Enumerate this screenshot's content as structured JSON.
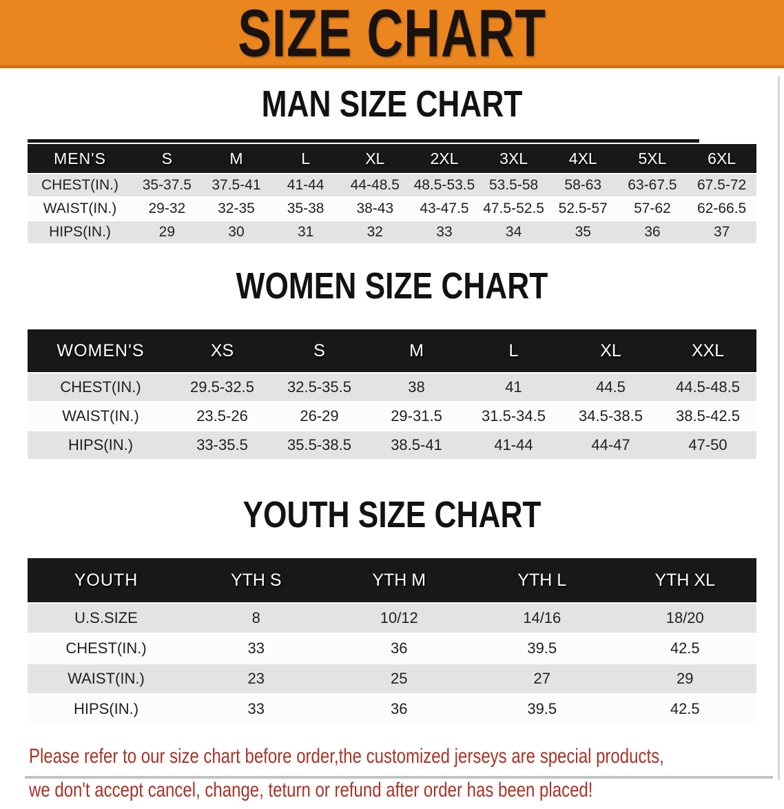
{
  "banner": {
    "title": "SIZE CHART"
  },
  "colors": {
    "banner_bg": "#EB851E",
    "banner_edge": "#C96F10",
    "band_bg": "#181818",
    "shade_row": "#E3E3E4",
    "note_red": "#A93226"
  },
  "sections": [
    {
      "title": "MAN SIZE CHART",
      "corner_label": "MEN'S",
      "columns": [
        "S",
        "M",
        "L",
        "XL",
        "2XL",
        "3XL",
        "4XL",
        "5XL",
        "6XL"
      ],
      "rows": [
        {
          "label": "CHEST(IN.)",
          "values": [
            "35-37.5",
            "37.5-41",
            "41-44",
            "44-48.5",
            "48.5-53.5",
            "53.5-58",
            "58-63",
            "63-67.5",
            "67.5-72"
          ]
        },
        {
          "label": "WAIST(IN.)",
          "values": [
            "29-32",
            "32-35",
            "35-38",
            "38-43",
            "43-47.5",
            "47.5-52.5",
            "52.5-57",
            "57-62",
            "62-66.5"
          ]
        },
        {
          "label": "HIPS(IN.)",
          "values": [
            "29",
            "30",
            "31",
            "32",
            "33",
            "34",
            "35",
            "36",
            "37"
          ]
        }
      ]
    },
    {
      "title": "WOMEN SIZE CHART",
      "corner_label": "WOMEN'S",
      "columns": [
        "XS",
        "S",
        "M",
        "L",
        "XL",
        "XXL"
      ],
      "rows": [
        {
          "label": "CHEST(IN.)",
          "values": [
            "29.5-32.5",
            "32.5-35.5",
            "38",
            "41",
            "44.5",
            "44.5-48.5"
          ]
        },
        {
          "label": "WAIST(IN.)",
          "values": [
            "23.5-26",
            "26-29",
            "29-31.5",
            "31.5-34.5",
            "34.5-38.5",
            "38.5-42.5"
          ]
        },
        {
          "label": "HIPS(IN.)",
          "values": [
            "33-35.5",
            "35.5-38.5",
            "38.5-41",
            "41-44",
            "44-47",
            "47-50"
          ]
        }
      ]
    },
    {
      "title": "YOUTH SIZE CHART",
      "corner_label": "YOUTH",
      "columns": [
        "YTH S",
        "YTH M",
        "YTH L",
        "YTH XL"
      ],
      "rows": [
        {
          "label": "U.S.SIZE",
          "values": [
            "8",
            "10/12",
            "14/16",
            "18/20"
          ]
        },
        {
          "label": "CHEST(IN.)",
          "values": [
            "33",
            "36",
            "39.5",
            "42.5"
          ]
        },
        {
          "label": "WAIST(IN.)",
          "values": [
            "23",
            "25",
            "27",
            "29"
          ]
        },
        {
          "label": "HIPS(IN.)",
          "values": [
            "33",
            "36",
            "39.5",
            "42.5"
          ]
        }
      ]
    }
  ],
  "footer": {
    "line1": "Please refer to our size chart before order,the customized jerseys are special products,",
    "line2": "we don't accept cancel, change, teturn or refund after order has been placed!"
  }
}
